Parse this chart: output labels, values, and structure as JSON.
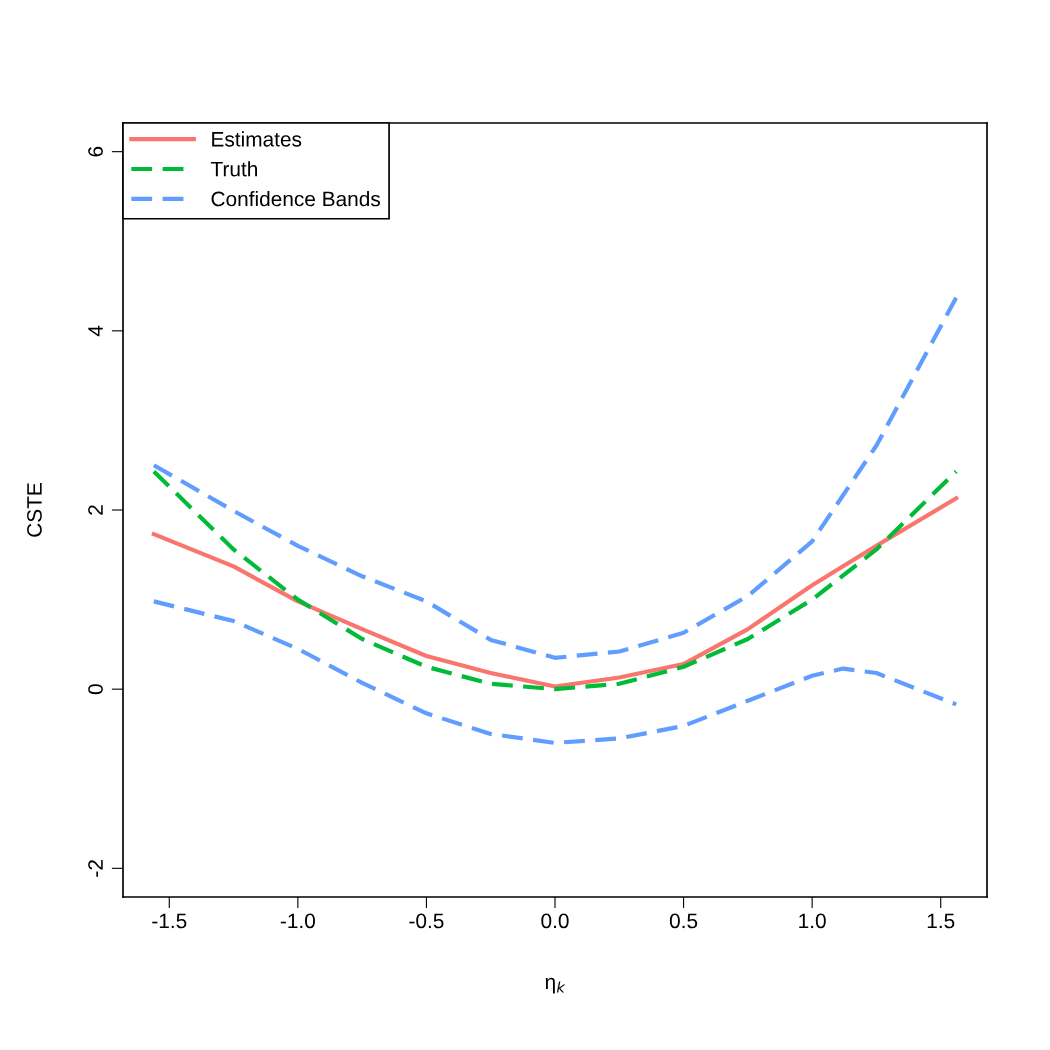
{
  "chart_data": {
    "type": "line",
    "xlabel": "η$_{k}$",
    "ylabel": "CSTE",
    "x": [
      -1.56,
      -1.25,
      -1.0,
      -0.75,
      -0.5,
      -0.25,
      0.0,
      0.25,
      0.5,
      0.75,
      1.0,
      1.25,
      1.56
    ],
    "series": [
      {
        "name": "Estimates",
        "color": "#f8766d",
        "line_style": "solid",
        "values": [
          1.73,
          1.37,
          0.98,
          0.67,
          0.37,
          0.18,
          0.03,
          0.13,
          0.28,
          0.67,
          1.16,
          1.6,
          2.13
        ]
      },
      {
        "name": "Truth",
        "color": "#00ba38",
        "line_style": "dashed",
        "values": [
          2.43,
          1.56,
          1.0,
          0.56,
          0.25,
          0.06,
          0.0,
          0.06,
          0.25,
          0.56,
          1.0,
          1.56,
          2.43
        ]
      },
      {
        "name": "Confidence Bands",
        "color": "#619cff",
        "line_style": "dashed",
        "values": [
          2.5,
          1.99,
          1.6,
          1.26,
          0.98,
          0.55,
          0.35,
          0.42,
          0.63,
          1.04,
          1.65,
          2.72,
          4.37
        ]
      },
      {
        "color": "#619cff",
        "line_style": "dashed",
        "x": [
          -1.56,
          -1.25,
          -1.0,
          -0.75,
          -0.5,
          -0.25,
          0.0,
          0.25,
          0.5,
          0.75,
          1.0,
          1.12,
          1.25,
          1.56
        ],
        "values": [
          0.98,
          0.76,
          0.45,
          0.07,
          -0.27,
          -0.5,
          -0.6,
          -0.55,
          -0.41,
          -0.13,
          0.15,
          0.23,
          0.18,
          -0.17
        ]
      }
    ],
    "xlim": [
      -1.68,
      1.68
    ],
    "ylim": [
      -2.32,
      6.32
    ],
    "xticks": [
      {
        "value": -1.5,
        "label": "-1.5"
      },
      {
        "value": -1.0,
        "label": "-1.0"
      },
      {
        "value": -0.5,
        "label": "-0.5"
      },
      {
        "value": 0.0,
        "label": "0.0"
      },
      {
        "value": 0.5,
        "label": "0.5"
      },
      {
        "value": 1.0,
        "label": "1.0"
      },
      {
        "value": 1.5,
        "label": "1.5"
      }
    ],
    "yticks": [
      -2,
      0,
      2,
      4,
      6
    ],
    "legend": "top left",
    "grid": false
  }
}
